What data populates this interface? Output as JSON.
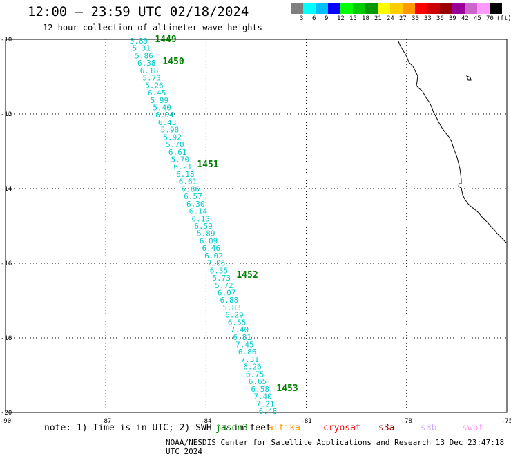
{
  "title": "12:00 — 23:59 UTC 02/18/2024",
  "subtitle": "12 hour collection of altimeter wave heights",
  "scale": {
    "colors": [
      "#7f7f7f",
      "#00ffff",
      "#00bfff",
      "#0000ff",
      "#00ff00",
      "#00cc00",
      "#009900",
      "#ffff00",
      "#ffcc00",
      "#ff9900",
      "#ff0000",
      "#cc0000",
      "#990000",
      "#990099",
      "#cc66cc",
      "#ff99ff",
      "#000000"
    ],
    "labels": [
      "3",
      "6",
      "9",
      "12",
      "15",
      "18",
      "21",
      "24",
      "27",
      "30",
      "33",
      "36",
      "39",
      "42",
      "45",
      "70",
      "(ft)"
    ]
  },
  "map": {
    "lon_min": -90,
    "lon_max": -75,
    "lat_min": -20,
    "lat_max": -10,
    "lon_ticks": [
      "-90",
      "-87",
      "-84",
      "-81",
      "-78",
      "-75"
    ],
    "lat_ticks": [
      "-10",
      "-12",
      "-14",
      "-16",
      "-18",
      "-20"
    ]
  },
  "track": {
    "color": "#00cccc",
    "swh": [
      "5.89",
      "5.31",
      "5.86",
      "6.38",
      "6.18",
      "5.73",
      "5.26",
      "6.45",
      "5.99",
      "5.40",
      "6.04",
      "6.43",
      "5.98",
      "5.92",
      "5.70",
      "6.61",
      "5.70",
      "6.21",
      "6.18",
      "6.61",
      "6.86",
      "6.57",
      "6.30",
      "6.14",
      "6.13",
      "6.59",
      "5.89",
      "6.09",
      "6.46",
      "6.02",
      "7.05",
      "6.35",
      "5.73",
      "5.72",
      "6.07",
      "6.88",
      "5.83",
      "6.29",
      "6.55",
      "7.40",
      "6.81",
      "7.45",
      "6.86",
      "7.31",
      "6.26",
      "6.75",
      "6.65",
      "6.58",
      "7.40",
      "7.21",
      "6.48"
    ]
  },
  "time_labels": {
    "color": "#008000",
    "items": [
      "1449",
      "1450",
      "1451",
      "1452",
      "1453"
    ]
  },
  "footer": {
    "note": "note: 1) Time is in UTC; 2) SWH is in feet",
    "satellites": [
      {
        "name": "jason3",
        "color": "#008000"
      },
      {
        "name": "altika",
        "color": "#ff9900"
      },
      {
        "name": "cryosat",
        "color": "#ff0000"
      },
      {
        "name": "s3a",
        "color": "#990000"
      },
      {
        "name": "s3b",
        "color": "#ccaaff"
      },
      {
        "name": "swot",
        "color": "#ff99ff"
      }
    ],
    "credit": "NOAA/NESDIS Center for Satellite Applications and Research   13 Dec 23:47:18 UTC 2024"
  }
}
